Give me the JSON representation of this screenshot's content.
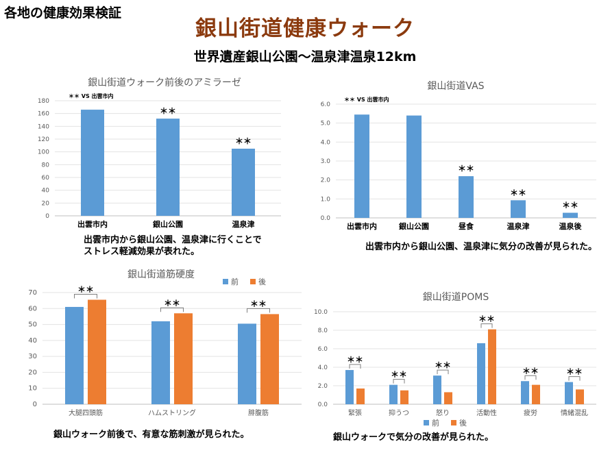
{
  "header": {
    "corner_label": "各地の健康効果検証",
    "title": "銀山街道健康ウォーク",
    "subtitle": "世界遺産銀山公園～温泉津温泉12km"
  },
  "colors": {
    "blue": "#5b9bd5",
    "orange": "#ed7d31",
    "title_brown": "#8b3a0e",
    "axis_text": "#595959"
  },
  "captions": {
    "amylase": "出雲市内から銀山公園、温泉津に行くことで\nストレス軽減効果が表れた。",
    "vas": "出雲市内から銀山公園、温泉津に気分の改善が見られた。",
    "muscle": "銀山ウォーク前後で、有意な筋刺激が見られた。",
    "poms": "銀山ウォークで気分の改善が見られた。"
  },
  "chart_data": [
    {
      "type": "bar",
      "title": "銀山街道ウォーク前後のアミラーゼ",
      "note": "＊＊ VS  出雲市内",
      "categories": [
        "出雲市内",
        "銀山公園",
        "温泉津"
      ],
      "values": [
        166,
        152,
        105
      ],
      "significance": [
        "",
        "＊＊",
        "＊＊"
      ],
      "ylim": [
        0,
        180
      ],
      "yticks": [
        0,
        20,
        40,
        60,
        80,
        100,
        120,
        140,
        160,
        180
      ]
    },
    {
      "type": "bar",
      "title": "銀山街道VAS",
      "note": "＊＊ VS  出雲市内",
      "categories": [
        "出雲市内",
        "銀山公園",
        "昼食",
        "温泉津",
        "温泉後"
      ],
      "values": [
        5.45,
        5.4,
        2.2,
        0.93,
        0.27
      ],
      "significance": [
        "",
        "",
        "＊＊",
        "＊＊",
        "＊＊"
      ],
      "ylim": [
        0,
        6
      ],
      "yticks": [
        "0.0",
        "1.0",
        "2.0",
        "3.0",
        "4.0",
        "5.0",
        "6.0"
      ]
    },
    {
      "type": "bar",
      "title": "銀山街道筋硬度",
      "categories": [
        "大腿四頭筋",
        "ハムストリング",
        "腓腹筋"
      ],
      "series": [
        {
          "name": "前",
          "values": [
            61,
            52,
            50.5
          ]
        },
        {
          "name": "後",
          "values": [
            65.5,
            57,
            56.5
          ]
        }
      ],
      "significance": [
        "＊＊",
        "＊＊",
        "＊＊"
      ],
      "legend": "top-right",
      "ylim": [
        0,
        70
      ],
      "yticks": [
        0,
        10,
        20,
        30,
        40,
        50,
        60,
        70
      ]
    },
    {
      "type": "bar",
      "title": "銀山街道POMS",
      "categories": [
        "緊張",
        "抑うつ",
        "怒り",
        "活動性",
        "疲労",
        "情緒混乱"
      ],
      "series": [
        {
          "name": "前",
          "values": [
            3.7,
            2.1,
            3.1,
            6.6,
            2.5,
            2.4
          ]
        },
        {
          "name": "後",
          "values": [
            1.7,
            1.5,
            1.3,
            8.1,
            2.1,
            1.6
          ]
        }
      ],
      "significance": [
        "＊＊",
        "＊＊",
        "＊＊",
        "＊＊",
        "＊＊",
        "＊＊"
      ],
      "legend": "bottom",
      "ylim": [
        0,
        10
      ],
      "yticks": [
        "0.0",
        "2.0",
        "4.0",
        "6.0",
        "8.0",
        "10.0"
      ]
    }
  ]
}
